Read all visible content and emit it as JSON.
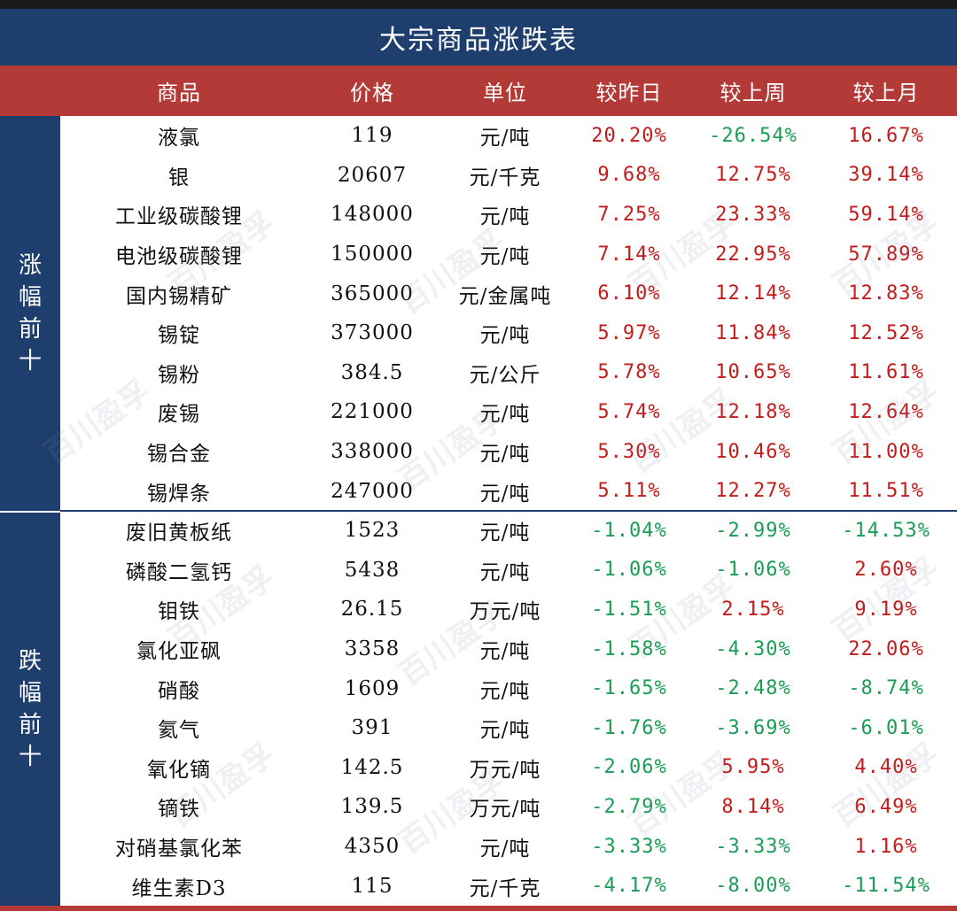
{
  "title": "大宗商品涨跌表",
  "headers": [
    "商品",
    "价格",
    "单位",
    "较昨日",
    "较上周",
    "较上月"
  ],
  "sections": {
    "up_label": "涨幅前十",
    "down_label": "跌幅前十"
  },
  "colors": {
    "header_bg": "#b43a37",
    "title_bg": "#1e3f6e",
    "up": "#c41b1b",
    "down": "#1a9d55"
  },
  "rows": [
    {
      "name": "液氯",
      "price": "119",
      "unit": "元/吨",
      "d1": "20.20%",
      "w1": "-26.54%",
      "m1": "16.67%"
    },
    {
      "name": "银",
      "price": "20607",
      "unit": "元/千克",
      "d1": "9.68%",
      "w1": "12.75%",
      "m1": "39.14%"
    },
    {
      "name": "工业级碳酸锂",
      "price": "148000",
      "unit": "元/吨",
      "d1": "7.25%",
      "w1": "23.33%",
      "m1": "59.14%"
    },
    {
      "name": "电池级碳酸锂",
      "price": "150000",
      "unit": "元/吨",
      "d1": "7.14%",
      "w1": "22.95%",
      "m1": "57.89%"
    },
    {
      "name": "国内锡精矿",
      "price": "365000",
      "unit": "元/金属吨",
      "d1": "6.10%",
      "w1": "12.14%",
      "m1": "12.83%"
    },
    {
      "name": "锡锭",
      "price": "373000",
      "unit": "元/吨",
      "d1": "5.97%",
      "w1": "11.84%",
      "m1": "12.52%"
    },
    {
      "name": "锡粉",
      "price": "384.5",
      "unit": "元/公斤",
      "d1": "5.78%",
      "w1": "10.65%",
      "m1": "11.61%"
    },
    {
      "name": "废锡",
      "price": "221000",
      "unit": "元/吨",
      "d1": "5.74%",
      "w1": "12.18%",
      "m1": "12.64%"
    },
    {
      "name": "锡合金",
      "price": "338000",
      "unit": "元/吨",
      "d1": "5.30%",
      "w1": "10.46%",
      "m1": "11.00%"
    },
    {
      "name": "锡焊条",
      "price": "247000",
      "unit": "元/吨",
      "d1": "5.11%",
      "w1": "12.27%",
      "m1": "11.51%"
    },
    {
      "name": "废旧黄板纸",
      "price": "1523",
      "unit": "元/吨",
      "d1": "-1.04%",
      "w1": "-2.99%",
      "m1": "-14.53%"
    },
    {
      "name": "磷酸二氢钙",
      "price": "5438",
      "unit": "元/吨",
      "d1": "-1.06%",
      "w1": "-1.06%",
      "m1": "2.60%"
    },
    {
      "name": "钼铁",
      "price": "26.15",
      "unit": "万元/吨",
      "d1": "-1.51%",
      "w1": "2.15%",
      "m1": "9.19%"
    },
    {
      "name": "氯化亚砜",
      "price": "3358",
      "unit": "元/吨",
      "d1": "-1.58%",
      "w1": "-4.30%",
      "m1": "22.06%"
    },
    {
      "name": "硝酸",
      "price": "1609",
      "unit": "元/吨",
      "d1": "-1.65%",
      "w1": "-2.48%",
      "m1": "-8.74%"
    },
    {
      "name": "氦气",
      "price": "391",
      "unit": "元/吨",
      "d1": "-1.76%",
      "w1": "-3.69%",
      "m1": "-6.01%"
    },
    {
      "name": "氧化镝",
      "price": "142.5",
      "unit": "万元/吨",
      "d1": "-2.06%",
      "w1": "5.95%",
      "m1": "4.40%"
    },
    {
      "name": "镝铁",
      "price": "139.5",
      "unit": "万元/吨",
      "d1": "-2.79%",
      "w1": "8.14%",
      "m1": "6.49%"
    },
    {
      "name": "对硝基氯化苯",
      "price": "4350",
      "unit": "元/吨",
      "d1": "-3.33%",
      "w1": "-3.33%",
      "m1": "1.16%"
    },
    {
      "name": "维生素D3",
      "price": "115",
      "unit": "元/千克",
      "d1": "-4.17%",
      "w1": "-8.00%",
      "m1": "-11.54%"
    }
  ]
}
